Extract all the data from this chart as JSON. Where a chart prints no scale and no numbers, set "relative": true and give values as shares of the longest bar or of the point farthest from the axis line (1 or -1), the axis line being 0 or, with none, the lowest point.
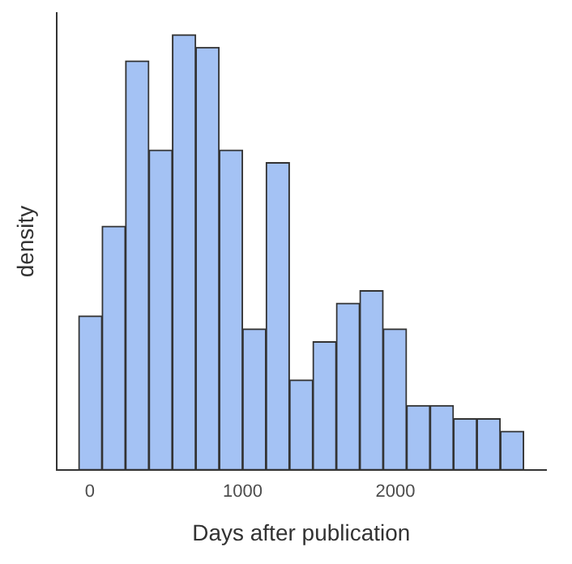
{
  "chart_data": {
    "type": "bar",
    "xlabel": "Days after publication",
    "ylabel": "density",
    "relative": true,
    "x": [
      3.5,
      156.5,
      310,
      463.5,
      616.5,
      770,
      923.5,
      1076.5,
      1230,
      1383.5,
      1536.5,
      1690,
      1843.5,
      1996.5,
      2150,
      2303.5,
      2456.5,
      2610,
      2763.5
    ],
    "values": [
      0.354,
      0.56,
      0.94,
      0.735,
      1,
      0.971,
      0.735,
      0.324,
      0.706,
      0.207,
      0.295,
      0.383,
      0.412,
      0.324,
      0.148,
      0.148,
      0.118,
      0.118,
      0.089
    ],
    "color": "#a4c2f4",
    "xlim": [
      -219,
      2986
    ],
    "xticks": [
      0,
      1000,
      2000
    ],
    "grid": false,
    "legend": false
  }
}
